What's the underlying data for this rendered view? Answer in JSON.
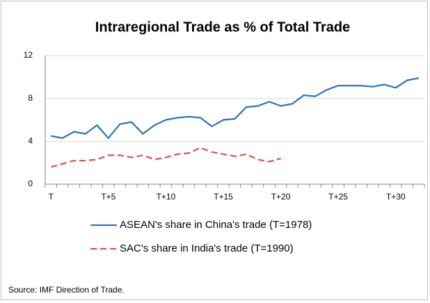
{
  "chart_data": {
    "type": "line",
    "title": "Intraregional Trade as % of Total Trade",
    "categories": [
      "T",
      null,
      null,
      null,
      null,
      "T+5",
      null,
      null,
      null,
      null,
      "T+10",
      null,
      null,
      null,
      null,
      "T+15",
      null,
      null,
      null,
      null,
      "T+20",
      null,
      null,
      null,
      null,
      "T+25",
      null,
      null,
      null,
      null,
      "T+30",
      null,
      null
    ],
    "series": [
      {
        "name": "ASEAN's share in China's trade (T=1978)",
        "color": "#2e75b6",
        "line_style": "solid",
        "values": [
          4.5,
          4.3,
          4.9,
          4.7,
          5.5,
          4.3,
          5.6,
          5.8,
          4.7,
          5.5,
          6.0,
          6.2,
          6.3,
          6.2,
          5.4,
          6.0,
          6.1,
          7.2,
          7.3,
          7.7,
          7.3,
          7.5,
          8.3,
          8.2,
          8.8,
          9.2,
          9.2,
          9.2,
          9.1,
          9.3,
          9.0,
          9.7,
          9.9
        ]
      },
      {
        "name": "SAC's share in India's trade (T=1990)",
        "color": "#d9534f",
        "line_style": "dashed",
        "values": [
          1.6,
          1.9,
          2.2,
          2.2,
          2.3,
          2.7,
          2.7,
          2.5,
          2.7,
          2.3,
          2.5,
          2.8,
          2.9,
          3.4,
          3.0,
          2.8,
          2.6,
          2.8,
          2.3,
          2.1,
          2.4,
          null,
          null,
          null,
          null,
          null,
          null,
          null,
          null,
          null,
          null,
          null,
          null
        ]
      }
    ],
    "ylim": [
      0,
      12
    ],
    "yticks": [
      0,
      4,
      8,
      12
    ],
    "grid": true,
    "source": "Source: IMF Direction of Trade."
  }
}
